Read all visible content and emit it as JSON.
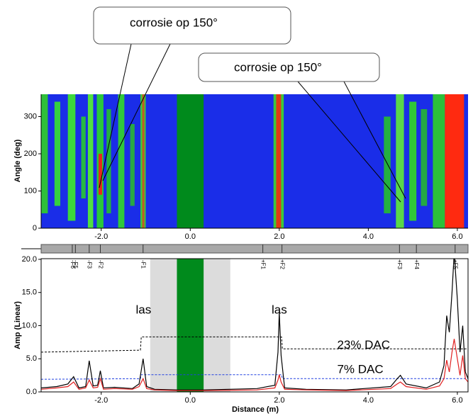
{
  "chart_data": [
    {
      "type": "heatmap",
      "ylabel": "Angle (deg)",
      "xlim": [
        -3.35,
        6.24
      ],
      "ylim": [
        0,
        360
      ],
      "xticks": [
        {
          "value": -2,
          "label": "-2.0"
        },
        {
          "value": 0,
          "label": "0.0"
        },
        {
          "value": 2,
          "label": "2.0"
        },
        {
          "value": 4,
          "label": "4.0"
        },
        {
          "value": 6,
          "label": "6.0"
        }
      ],
      "yticks": [
        0,
        100,
        200,
        300
      ],
      "background": "#1a2de8",
      "annotations": [
        {
          "text": "corrosie op 150°"
        },
        {
          "text": "corrosie op 150°"
        }
      ],
      "cells": [
        {
          "x0": -3.35,
          "x1": -3.2,
          "y0": 40,
          "y1": 360,
          "color": "#2fbf3a"
        },
        {
          "x0": -3.05,
          "x1": -2.92,
          "y0": 60,
          "y1": 340,
          "color": "#35d040"
        },
        {
          "x0": -2.75,
          "x1": -2.58,
          "y0": 20,
          "y1": 360,
          "color": "#3cd83c"
        },
        {
          "x0": -2.45,
          "x1": -2.35,
          "y0": 80,
          "y1": 300,
          "color": "#28b844"
        },
        {
          "x0": -2.3,
          "x1": -2.18,
          "y0": 0,
          "y1": 360,
          "color": "#50e040"
        },
        {
          "x0": -2.1,
          "x1": -1.95,
          "y0": 0,
          "y1": 360,
          "color": "#2ac83a"
        },
        {
          "x0": -2.06,
          "x1": -1.98,
          "y0": 90,
          "y1": 200,
          "color": "#e8281a"
        },
        {
          "x0": -1.88,
          "x1": -1.78,
          "y0": 40,
          "y1": 320,
          "color": "#24b040"
        },
        {
          "x0": -1.62,
          "x1": -1.48,
          "y0": 0,
          "y1": 360,
          "color": "#30c83a"
        },
        {
          "x0": -1.35,
          "x1": -1.25,
          "y0": 60,
          "y1": 280,
          "color": "#28a844"
        },
        {
          "x0": -1.12,
          "x1": -1.0,
          "y0": 0,
          "y1": 360,
          "color": "#3cc83c"
        },
        {
          "x0": -1.08,
          "x1": -1.03,
          "y0": 0,
          "y1": 360,
          "color": "#c05a24"
        },
        {
          "x0": -0.3,
          "x1": 0.3,
          "y0": 0,
          "y1": 360,
          "color": "#008a1c"
        },
        {
          "x0": 1.87,
          "x1": 2.1,
          "y0": 0,
          "y1": 360,
          "color": "#3cc83c"
        },
        {
          "x0": 1.93,
          "x1": 2.04,
          "y0": 0,
          "y1": 360,
          "color": "#e03a14"
        },
        {
          "x0": 4.35,
          "x1": 4.5,
          "y0": 40,
          "y1": 300,
          "color": "#24b040"
        },
        {
          "x0": 4.62,
          "x1": 4.8,
          "y0": 0,
          "y1": 360,
          "color": "#5ad848"
        },
        {
          "x0": 4.92,
          "x1": 5.08,
          "y0": 20,
          "y1": 340,
          "color": "#30c838"
        },
        {
          "x0": 5.18,
          "x1": 5.32,
          "y0": 60,
          "y1": 320,
          "color": "#24a844"
        },
        {
          "x0": 5.45,
          "x1": 5.72,
          "y0": 0,
          "y1": 360,
          "color": "#2cc03a"
        },
        {
          "x0": 5.72,
          "x1": 6.15,
          "y0": 0,
          "y1": 360,
          "color": "#ff2a10"
        }
      ]
    },
    {
      "type": "line",
      "xlabel": "Distance (m)",
      "ylabel": "Amp (Linear)",
      "xlim": [
        -3.35,
        6.24
      ],
      "ylim": [
        0,
        20.1
      ],
      "xticks": [
        {
          "value": -2,
          "label": "-2.0"
        },
        {
          "value": 0,
          "label": "0.0"
        },
        {
          "value": 2,
          "label": "2.0"
        },
        {
          "value": 4,
          "label": "4.0"
        },
        {
          "value": 6,
          "label": "6.0"
        }
      ],
      "yticks": [
        {
          "value": 0,
          "label": "0.0"
        },
        {
          "value": 5,
          "label": "5.0"
        },
        {
          "value": 10,
          "label": "10.0"
        },
        {
          "value": 15,
          "label": "15.0"
        },
        {
          "value": 20,
          "label": "20.0"
        }
      ],
      "bands": [
        {
          "x0": -0.9,
          "x1": 0.9,
          "color": "#dcdcdc"
        },
        {
          "x0": -0.3,
          "x1": 0.3,
          "color": "#008a1c"
        }
      ],
      "features": [
        {
          "label": "-F6",
          "x": -2.65
        },
        {
          "label": "-F5",
          "x": -2.58
        },
        {
          "label": "-F3",
          "x": -2.27
        },
        {
          "label": "-F2",
          "x": -2.02
        },
        {
          "label": "-F1",
          "x": -1.06
        },
        {
          "label": "+F1",
          "x": 1.63
        },
        {
          "label": "+F2",
          "x": 2.06
        },
        {
          "label": "+F3",
          "x": 4.7
        },
        {
          "label": "+F4",
          "x": 5.08
        },
        {
          "label": "+F5",
          "x": 5.95
        }
      ],
      "texts": [
        {
          "text": "las",
          "x": -1.05,
          "y": 12.3
        },
        {
          "text": "las",
          "x": 2.0,
          "y": 12.3
        },
        {
          "text": "23% DAC",
          "x": 3.3,
          "y": 7.0
        },
        {
          "text": "7% DAC",
          "x": 3.3,
          "y": 3.3
        }
      ],
      "series": [
        {
          "color": "#000000",
          "style": "dashed",
          "x": [
            -3.35,
            -1.12,
            -1.1,
            2.05,
            2.07,
            6.24
          ],
          "values": [
            6.0,
            6.3,
            8.3,
            8.3,
            6.5,
            6.5
          ]
        },
        {
          "color": "#2040e0",
          "style": "dashed",
          "x": [
            -3.35,
            -1.12,
            -1.1,
            2.05,
            2.07,
            6.24
          ],
          "values": [
            1.9,
            2.0,
            2.6,
            2.6,
            2.0,
            2.0
          ]
        },
        {
          "color": "#000000",
          "style": "solid",
          "x": [
            -3.35,
            -3.0,
            -2.75,
            -2.62,
            -2.5,
            -2.35,
            -2.27,
            -2.18,
            -2.08,
            -2.02,
            -1.95,
            -1.7,
            -1.3,
            -1.15,
            -1.06,
            -0.98,
            -0.8,
            -0.3,
            0.3,
            1.5,
            1.9,
            1.97,
            2.0,
            2.04,
            2.12,
            2.6,
            3.5,
            4.5,
            4.65,
            4.72,
            4.85,
            5.3,
            5.6,
            5.7,
            5.76,
            5.82,
            5.88,
            5.93,
            6.0,
            6.06,
            6.12,
            6.18,
            6.24
          ],
          "values": [
            0.6,
            0.8,
            1.2,
            2.3,
            0.6,
            0.8,
            4.7,
            0.9,
            1.0,
            3.2,
            0.6,
            0.7,
            0.5,
            1.2,
            5.0,
            0.8,
            0.4,
            0.3,
            0.3,
            0.5,
            1.0,
            6.0,
            12.0,
            5.5,
            0.6,
            0.4,
            0.3,
            0.8,
            2.0,
            2.5,
            1.2,
            0.6,
            1.5,
            4.0,
            11.5,
            9.0,
            15.0,
            21.0,
            14.0,
            6.0,
            10.0,
            3.0,
            2.0
          ]
        },
        {
          "color": "#e02020",
          "style": "solid",
          "x": [
            -3.35,
            -3.0,
            -2.75,
            -2.62,
            -2.5,
            -2.35,
            -2.27,
            -2.18,
            -2.08,
            -2.02,
            -1.95,
            -1.7,
            -1.3,
            -1.15,
            -1.06,
            -0.98,
            -0.8,
            -0.3,
            0.3,
            1.5,
            1.9,
            1.97,
            2.0,
            2.04,
            2.12,
            2.6,
            3.5,
            4.5,
            4.65,
            4.72,
            4.85,
            5.3,
            5.6,
            5.7,
            5.76,
            5.82,
            5.88,
            5.93,
            6.0,
            6.06,
            6.12,
            6.18,
            6.24
          ],
          "values": [
            0.4,
            0.6,
            0.8,
            1.5,
            0.4,
            0.6,
            1.8,
            0.6,
            0.7,
            2.0,
            0.4,
            0.5,
            0.4,
            0.8,
            2.0,
            0.5,
            0.3,
            0.2,
            0.2,
            0.3,
            0.6,
            1.8,
            2.6,
            1.5,
            0.4,
            0.3,
            0.2,
            0.5,
            1.2,
            1.5,
            0.8,
            0.4,
            0.9,
            2.0,
            4.8,
            3.0,
            6.0,
            8.0,
            5.0,
            2.5,
            5.5,
            2.0,
            1.5
          ]
        }
      ]
    }
  ]
}
